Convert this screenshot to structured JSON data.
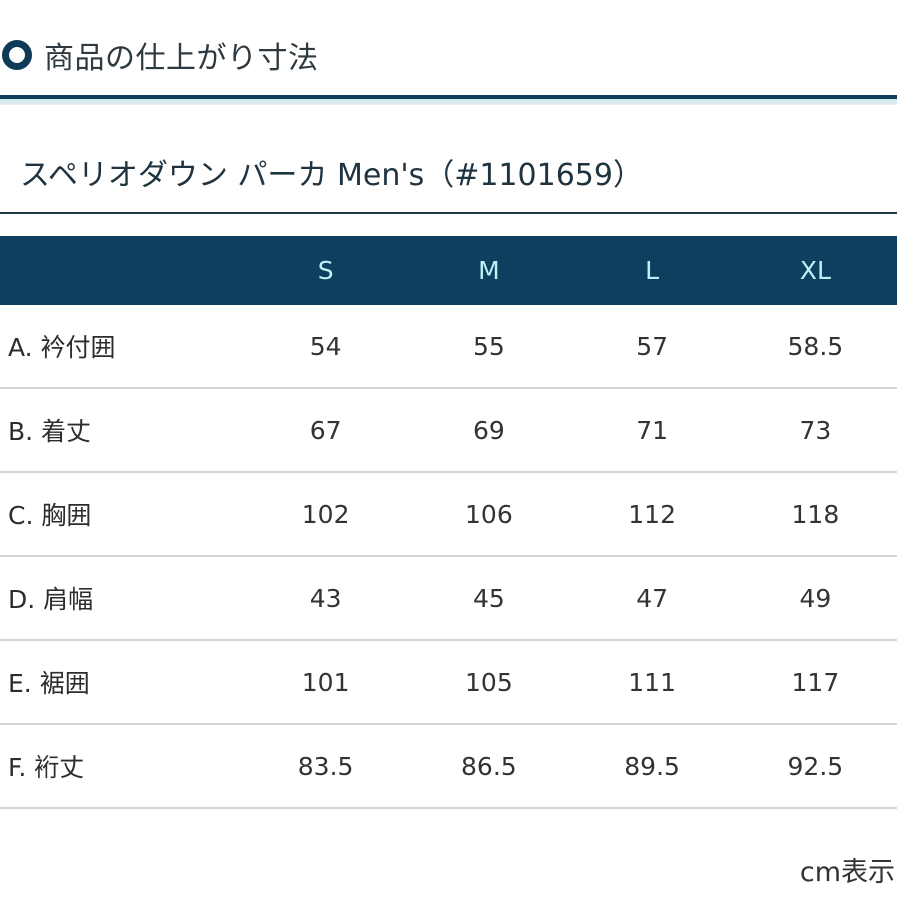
{
  "section": {
    "icon": "ring-icon",
    "title": "商品の仕上がり寸法"
  },
  "product": {
    "title": "スペリオダウン パーカ Men's（#1101659）"
  },
  "table": {
    "columns": [
      "",
      "S",
      "M",
      "L",
      "XL"
    ],
    "rows": [
      {
        "label": "A. 衿付囲",
        "values": [
          "54",
          "55",
          "57",
          "58.5"
        ]
      },
      {
        "label": "B. 着丈",
        "values": [
          "67",
          "69",
          "71",
          "73"
        ]
      },
      {
        "label": "C. 胸囲",
        "values": [
          "102",
          "106",
          "112",
          "118"
        ]
      },
      {
        "label": "D. 肩幅",
        "values": [
          "43",
          "45",
          "47",
          "49"
        ]
      },
      {
        "label": "E. 裾囲",
        "values": [
          "101",
          "105",
          "111",
          "117"
        ]
      },
      {
        "label": "F. 裄丈",
        "values": [
          "83.5",
          "86.5",
          "89.5",
          "92.5"
        ]
      }
    ]
  },
  "footer": {
    "unit_note": "cm表示"
  },
  "colors": {
    "accent": "#0f3f5f",
    "header_text": "#bff0f7",
    "row_divider": "#d4d4d4"
  }
}
